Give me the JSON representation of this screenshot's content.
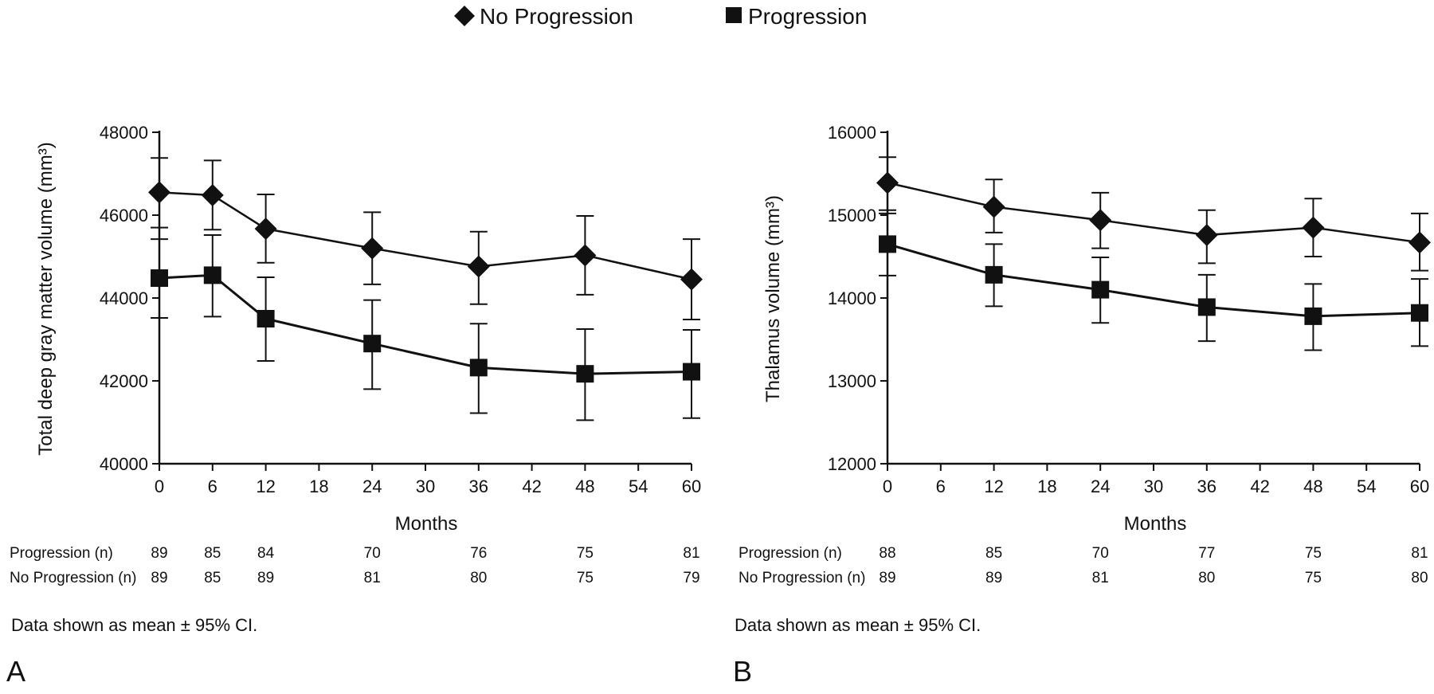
{
  "legend": [
    {
      "name": "No Progression",
      "marker": "diamond"
    },
    {
      "name": "Progression",
      "marker": "square"
    }
  ],
  "panels": [
    {
      "letter": "A",
      "note": "Data shown as mean ± 95% CI.",
      "count_rows": [
        {
          "label": "Progression (n)",
          "values": [
            89,
            85,
            84,
            70,
            76,
            75,
            81
          ]
        },
        {
          "label": "No Progression (n)",
          "values": [
            89,
            85,
            89,
            81,
            80,
            75,
            79
          ]
        }
      ]
    },
    {
      "letter": "B",
      "note": "Data shown as mean ± 95% CI.",
      "count_rows": [
        {
          "label": "Progression (n)",
          "values": [
            88,
            85,
            70,
            77,
            75,
            81
          ]
        },
        {
          "label": "No Progression (n)",
          "values": [
            89,
            89,
            81,
            80,
            75,
            80
          ]
        }
      ]
    }
  ],
  "chart_data": [
    {
      "type": "line",
      "xlabel": "Months",
      "ylabel": "Total deep gray matter volume (mm³)",
      "xlim": [
        0,
        60
      ],
      "ylim": [
        40000,
        48000
      ],
      "xticks": [
        0,
        6,
        12,
        18,
        24,
        30,
        36,
        42,
        48,
        54,
        60
      ],
      "yticks": [
        40000,
        42000,
        44000,
        46000,
        48000
      ],
      "x": [
        0,
        6,
        12,
        24,
        36,
        48,
        60
      ],
      "error_bars": "95% CI",
      "series": [
        {
          "name": "No Progression",
          "marker": "diamond",
          "values": [
            46550,
            46480,
            45670,
            45200,
            44760,
            45030,
            44450
          ],
          "ci_low": [
            45700,
            45650,
            44850,
            44330,
            43850,
            44080,
            43480
          ],
          "ci_high": [
            47380,
            47320,
            46500,
            46070,
            45600,
            45980,
            45420
          ]
        },
        {
          "name": "Progression",
          "marker": "square",
          "values": [
            44480,
            44550,
            43500,
            42900,
            42320,
            42170,
            42220
          ],
          "ci_low": [
            43520,
            43550,
            42480,
            41800,
            41220,
            41050,
            41100
          ],
          "ci_high": [
            45420,
            45520,
            44500,
            43950,
            43380,
            43250,
            43230
          ]
        }
      ]
    },
    {
      "type": "line",
      "xlabel": "Months",
      "ylabel": "Thalamus volume (mm³)",
      "xlim": [
        0,
        60
      ],
      "ylim": [
        12000,
        16000
      ],
      "xticks": [
        0,
        6,
        12,
        18,
        24,
        30,
        36,
        42,
        48,
        54,
        60
      ],
      "yticks": [
        12000,
        13000,
        14000,
        15000,
        16000
      ],
      "x": [
        0,
        12,
        24,
        36,
        48,
        60
      ],
      "error_bars": "95% CI",
      "series": [
        {
          "name": "No Progression",
          "marker": "diamond",
          "values": [
            15390,
            15100,
            14940,
            14760,
            14850,
            14670
          ],
          "ci_low": [
            15060,
            14790,
            14600,
            14420,
            14500,
            14330
          ],
          "ci_high": [
            15700,
            15430,
            15270,
            15060,
            15200,
            15020
          ]
        },
        {
          "name": "Progression",
          "marker": "square",
          "values": [
            14650,
            14280,
            14100,
            13890,
            13780,
            13820
          ],
          "ci_low": [
            14270,
            13900,
            13700,
            13480,
            13370,
            13420
          ],
          "ci_high": [
            15020,
            14650,
            14490,
            14280,
            14170,
            14230
          ]
        }
      ]
    }
  ]
}
